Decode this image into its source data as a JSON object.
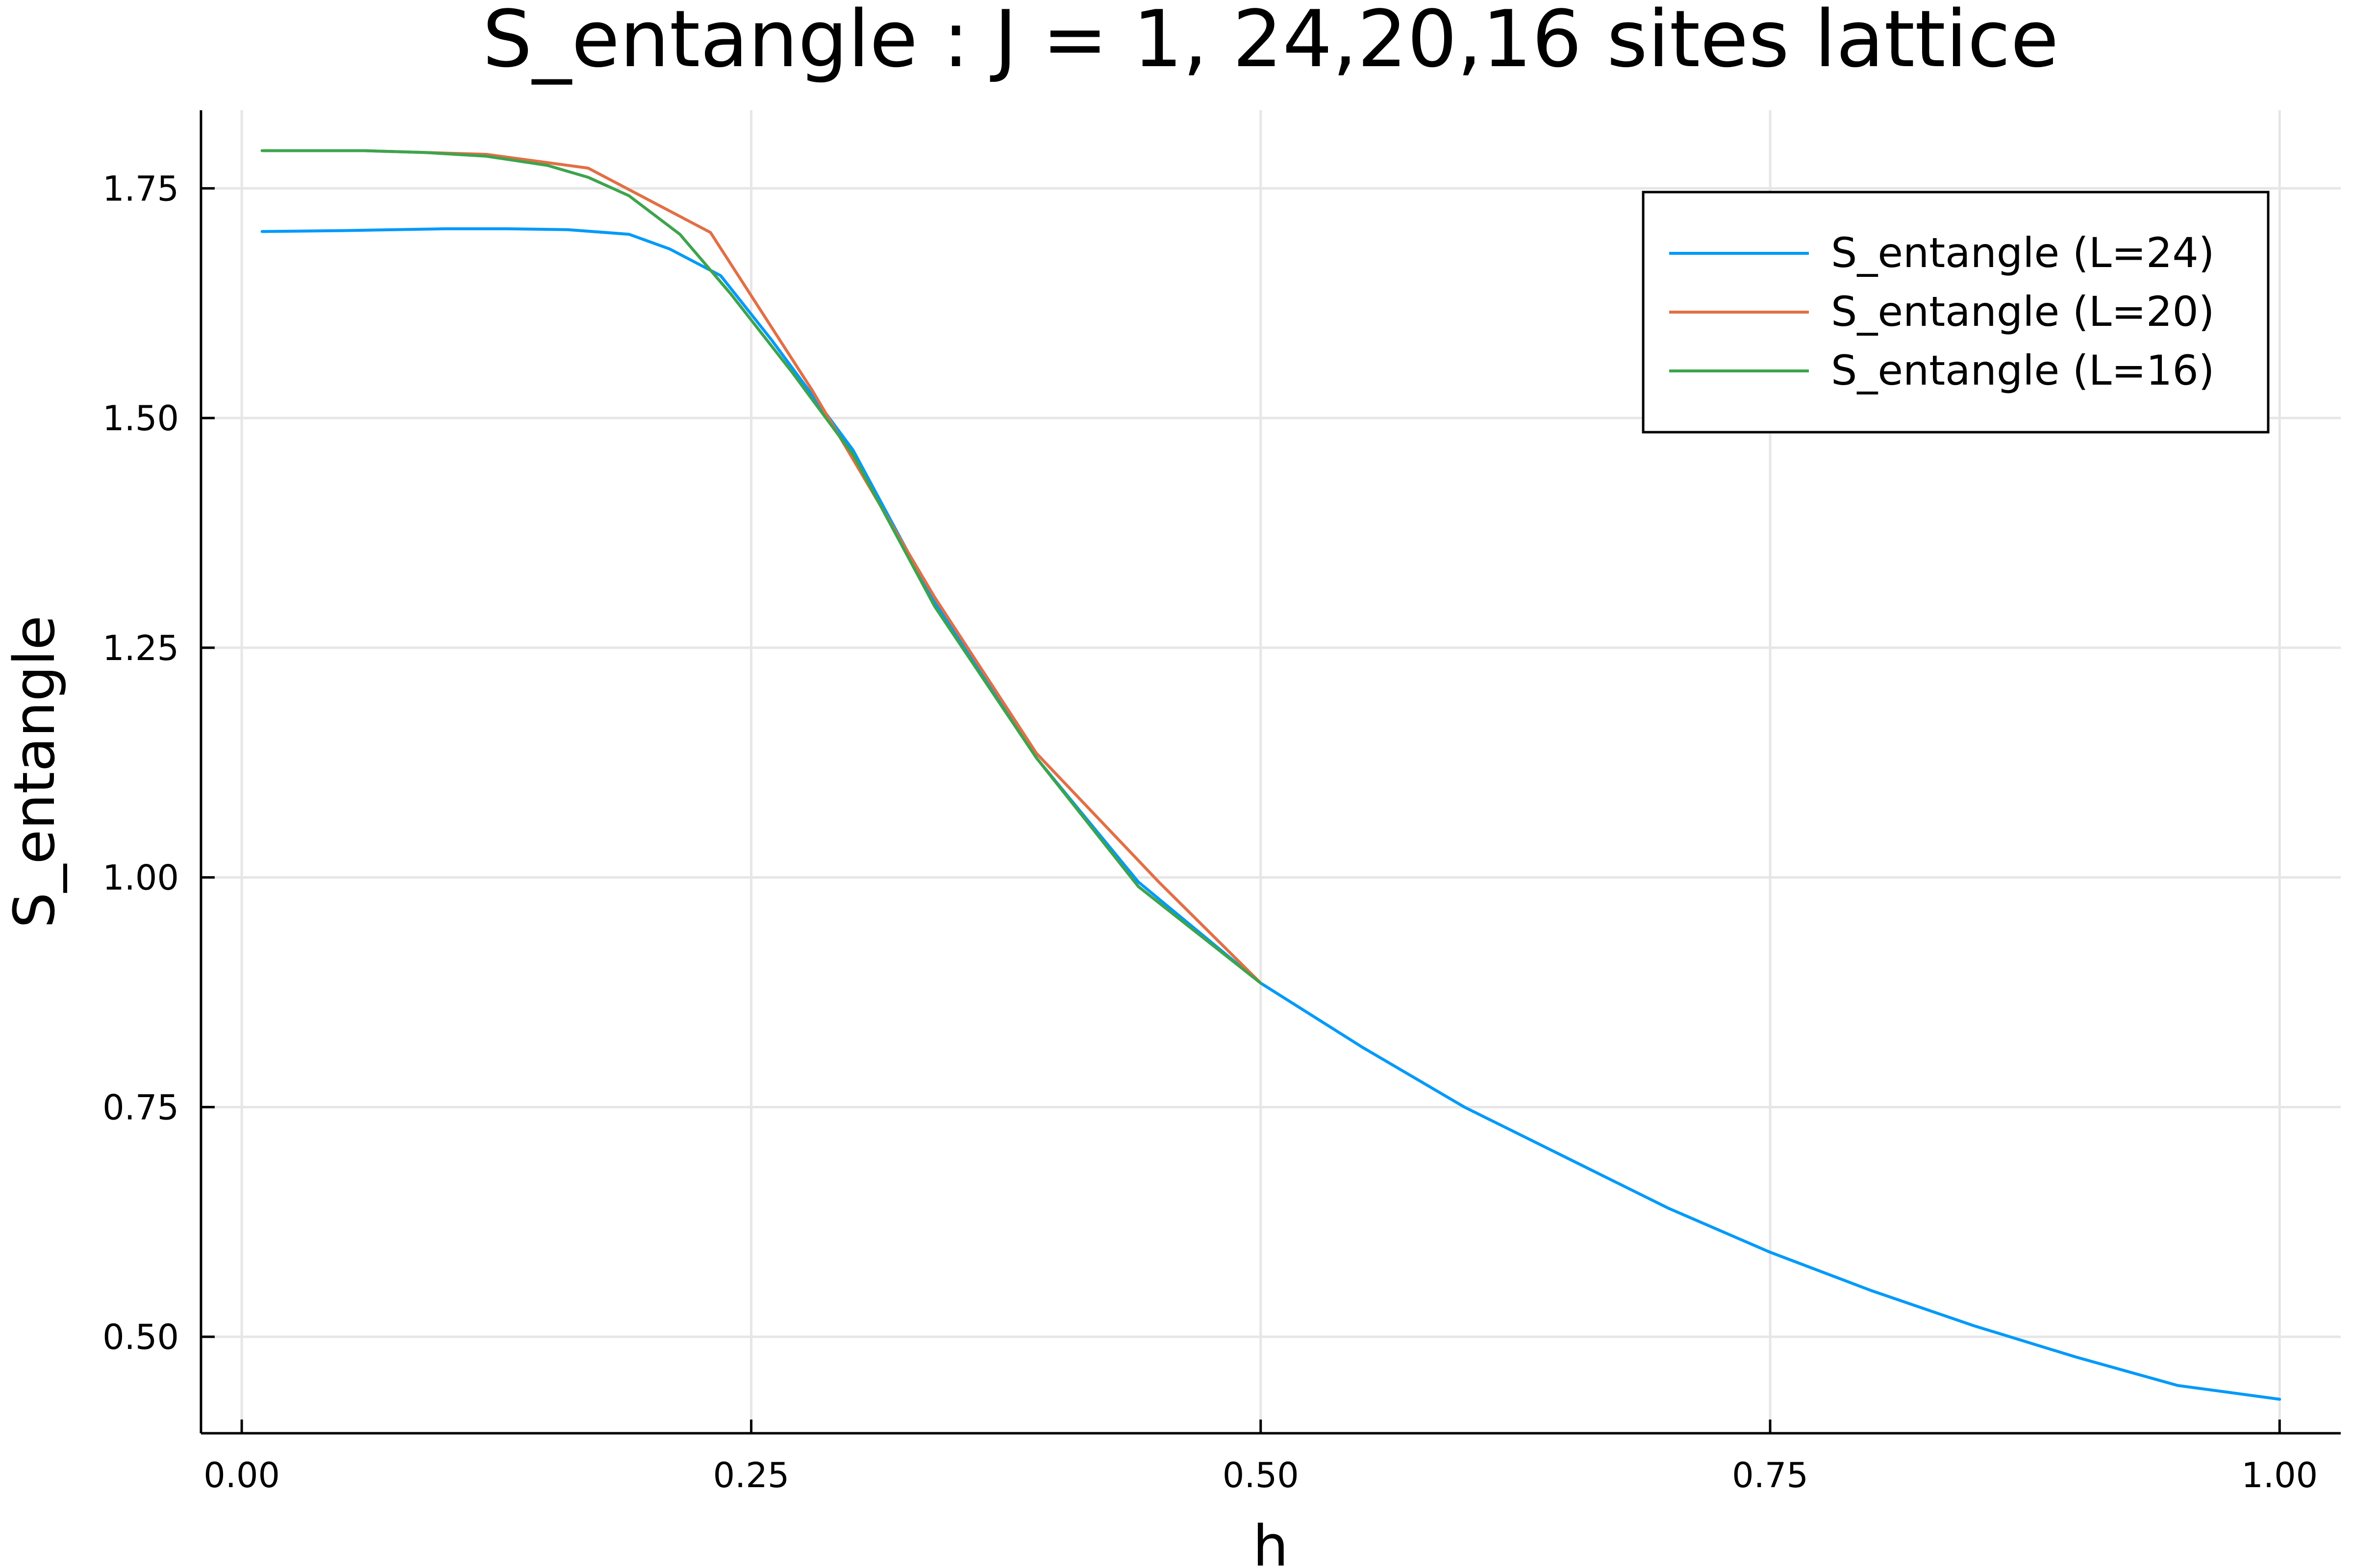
{
  "chart_data": {
    "type": "line",
    "title": "S_entangle : J = 1, 24,20,16 sites lattice",
    "xlabel": "h",
    "ylabel": "S_entangle",
    "xlim": [
      -0.02,
      1.03
    ],
    "ylim": [
      0.395,
      1.835
    ],
    "xticks": [
      0.0,
      0.25,
      0.5,
      0.75,
      1.0
    ],
    "xtick_labels": [
      "0.00",
      "0.25",
      "0.50",
      "0.75",
      "1.00"
    ],
    "yticks": [
      0.5,
      0.75,
      1.0,
      1.25,
      1.5,
      1.75
    ],
    "ytick_labels": [
      "0.50",
      "0.75",
      "1.00",
      "1.25",
      "1.50",
      "1.75"
    ],
    "grid": true,
    "legend_position": "top-right",
    "series": [
      {
        "name": "S_entangle (L=24)",
        "color": "#009af9",
        "x": [
          0.01,
          0.05,
          0.1,
          0.13,
          0.16,
          0.19,
          0.21,
          0.235,
          0.26,
          0.28,
          0.3,
          0.34,
          0.39,
          0.44,
          0.5,
          0.55,
          0.6,
          0.65,
          0.7,
          0.75,
          0.8,
          0.85,
          0.9,
          0.95,
          1.0
        ],
        "y": [
          1.703,
          1.704,
          1.706,
          1.706,
          1.705,
          1.7,
          1.684,
          1.655,
          1.585,
          1.525,
          1.465,
          1.3,
          1.13,
          0.995,
          0.885,
          0.815,
          0.75,
          0.695,
          0.64,
          0.592,
          0.55,
          0.512,
          0.478,
          0.447,
          0.432
        ]
      },
      {
        "name": "S_entangle (L=20)",
        "color": "#e26f46",
        "x": [
          0.01,
          0.06,
          0.12,
          0.17,
          0.23,
          0.28,
          0.34,
          0.39,
          0.45,
          0.5
        ],
        "y": [
          1.791,
          1.791,
          1.787,
          1.772,
          1.702,
          1.53,
          1.305,
          1.135,
          0.995,
          0.885
        ]
      },
      {
        "name": "S_entangle (L=16)",
        "color": "#3da44d",
        "x": [
          0.01,
          0.06,
          0.09,
          0.12,
          0.15,
          0.17,
          0.19,
          0.215,
          0.24,
          0.27,
          0.3,
          0.34,
          0.39,
          0.44,
          0.5
        ],
        "y": [
          1.791,
          1.791,
          1.789,
          1.785,
          1.775,
          1.762,
          1.742,
          1.7,
          1.635,
          1.55,
          1.46,
          1.295,
          1.13,
          0.99,
          0.885
        ]
      }
    ]
  }
}
